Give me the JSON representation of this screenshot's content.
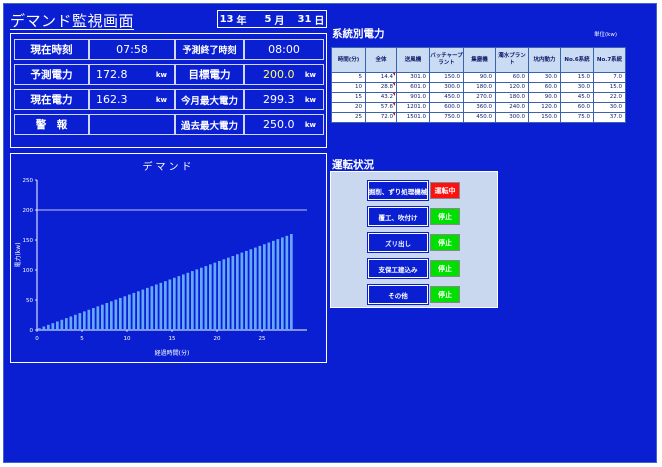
{
  "header": {
    "title": "デマンド監視画面",
    "date": {
      "year": "13",
      "year_unit": "年",
      "month": "5",
      "month_unit": "月",
      "day": "31",
      "day_unit": "日"
    }
  },
  "status": {
    "current_time_label": "現在時刻",
    "current_time": "07:58",
    "forecast_end_label": "予測終了時刻",
    "forecast_end": "08:00",
    "forecast_power_label": "予測電力",
    "forecast_power": "172.8",
    "target_power_label": "目標電力",
    "target_power": "200.0",
    "current_power_label": "現在電力",
    "current_power": "162.3",
    "today_max_label": "今月最大電力",
    "today_max": "299.3",
    "alarm_label": "警　報",
    "alarm_value": "",
    "past_max_label": "過去最大電力",
    "past_max": "250.0",
    "unit": "kw",
    "target_color": "#ffff66"
  },
  "chart_data": {
    "type": "bar",
    "title": "デマンド",
    "xlabel": "経過時間(分)",
    "ylabel": "電力(kw)",
    "xlim": [
      0,
      30
    ],
    "ylim": [
      0,
      250
    ],
    "xticks": [
      0,
      5,
      10,
      15,
      20,
      25
    ],
    "yticks": [
      0,
      50,
      100,
      150,
      200,
      250
    ],
    "target_line": 200,
    "x": [
      0,
      0.5,
      1,
      1.5,
      2,
      2.5,
      3,
      3.5,
      4,
      4.5,
      5,
      5.5,
      6,
      6.5,
      7,
      7.5,
      8,
      8.5,
      9,
      9.5,
      10,
      10.5,
      11,
      11.5,
      12,
      12.5,
      13,
      13.5,
      14,
      14.5,
      15,
      15.5,
      16,
      16.5,
      17,
      17.5,
      18,
      18.5,
      19,
      19.5,
      20,
      20.5,
      21,
      21.5,
      22,
      22.5,
      23,
      23.5,
      24,
      24.5,
      25,
      25.5,
      26,
      26.5,
      27,
      27.5,
      28
    ],
    "values": [
      3,
      5.8,
      8.6,
      11.4,
      14.2,
      17,
      19.8,
      22.6,
      25.4,
      28.2,
      31,
      33.8,
      36.6,
      39.4,
      42.2,
      45,
      47.8,
      50.6,
      53.4,
      56.2,
      59,
      61.8,
      64.6,
      67.4,
      70.2,
      73,
      75.8,
      78.6,
      81.4,
      84.2,
      87,
      89.8,
      92.6,
      95.4,
      98.2,
      101,
      103.8,
      106.6,
      109.4,
      112.2,
      115,
      117.8,
      120.6,
      123.4,
      126.2,
      129,
      131.8,
      134.6,
      137.4,
      140.2,
      143,
      145.8,
      148.6,
      151.4,
      154.2,
      157,
      160
    ]
  },
  "power_table": {
    "title": "系統別電力",
    "unit": "単位(kw)",
    "headers": [
      "時間(分)",
      "全体",
      "送風機",
      "バッチャープラント",
      "集塵機",
      "濁水プラント",
      "坑内動力",
      "No.6系統",
      "No.7系統"
    ],
    "rows": [
      [
        "5",
        "14.4",
        "301.0",
        "150.0",
        "90.0",
        "60.0",
        "30.0",
        "15.0",
        "7.0"
      ],
      [
        "10",
        "28.8",
        "601.0",
        "300.0",
        "180.0",
        "120.0",
        "60.0",
        "30.0",
        "15.0"
      ],
      [
        "15",
        "43.2",
        "901.0",
        "450.0",
        "270.0",
        "180.0",
        "90.0",
        "45.0",
        "22.0"
      ],
      [
        "20",
        "57.6",
        "1201.0",
        "600.0",
        "360.0",
        "240.0",
        "120.0",
        "60.0",
        "30.0"
      ],
      [
        "25",
        "72.0",
        "1501.0",
        "750.0",
        "450.0",
        "300.0",
        "150.0",
        "75.0",
        "37.0"
      ]
    ]
  },
  "operation": {
    "title": "運転状況",
    "items": [
      {
        "name": "掘削、ずり処理機械",
        "status": "運転中",
        "color": "#ff1010"
      },
      {
        "name": "覆工、吹付け",
        "status": "停止",
        "color": "#00e000"
      },
      {
        "name": "ズリ出し",
        "status": "停止",
        "color": "#00e000"
      },
      {
        "name": "支保工建込み",
        "status": "停止",
        "color": "#00e000"
      },
      {
        "name": "その他",
        "status": "停止",
        "color": "#00e000"
      }
    ]
  },
  "colors": {
    "background": "#0a1fd2",
    "bar": "#66a8ff"
  }
}
